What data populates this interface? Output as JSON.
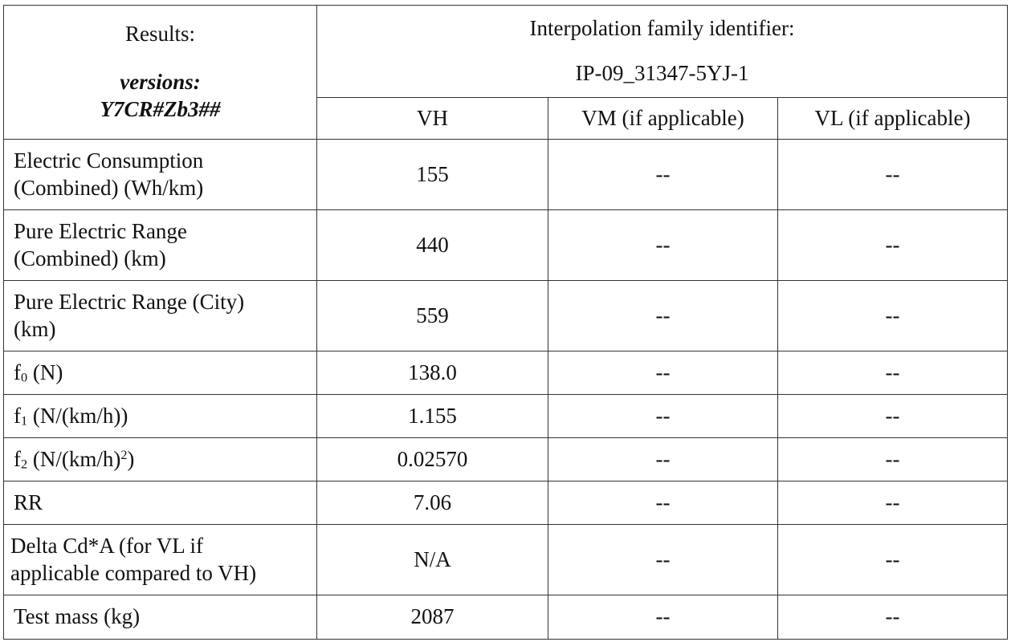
{
  "header": {
    "results_label": "Results:",
    "versions_label": "versions:",
    "versions_value": "Y7CR#Zb3##",
    "family_label": "Interpolation family identifier:",
    "family_id": "IP-09_31347-5YJ-1",
    "columns": [
      "VH",
      "VM (if applicable)",
      "VL (if applicable)"
    ]
  },
  "rows": [
    {
      "label_lines": [
        "Electric Consumption",
        "(Combined) (Wh/km)"
      ],
      "vh": "155",
      "vm": "--",
      "vl": "--"
    },
    {
      "label_lines": [
        "Pure Electric Range",
        "(Combined) (km)"
      ],
      "vh": "440",
      "vm": "--",
      "vl": "--"
    },
    {
      "label_lines": [
        "Pure Electric Range (City)",
        "(km)"
      ],
      "vh": "559",
      "vm": "--",
      "vl": "--"
    },
    {
      "label_base": "f",
      "label_sub": "0",
      "label_rest": " (N)",
      "vh": "138.0",
      "vm": "--",
      "vl": "--"
    },
    {
      "label_base": "f",
      "label_sub": "1",
      "label_rest": " (N/(km/h))",
      "vh": "1.155",
      "vm": "--",
      "vl": "--"
    },
    {
      "label_base": "f",
      "label_sub": "2",
      "label_rest": " (N/(km/h)",
      "label_sup": "2",
      "label_end": ")",
      "vh": "0.02570",
      "vm": "--",
      "vl": "--"
    },
    {
      "label": "RR",
      "vh": "7.06",
      "vm": "--",
      "vl": "--"
    },
    {
      "label_lines": [
        "Delta Cd*A (for VL if",
        "applicable compared to VH)"
      ],
      "vh": "N/A",
      "vm": "--",
      "vl": "--"
    },
    {
      "label": "Test mass (kg)",
      "vh": "2087",
      "vm": "--",
      "vl": "--"
    }
  ]
}
